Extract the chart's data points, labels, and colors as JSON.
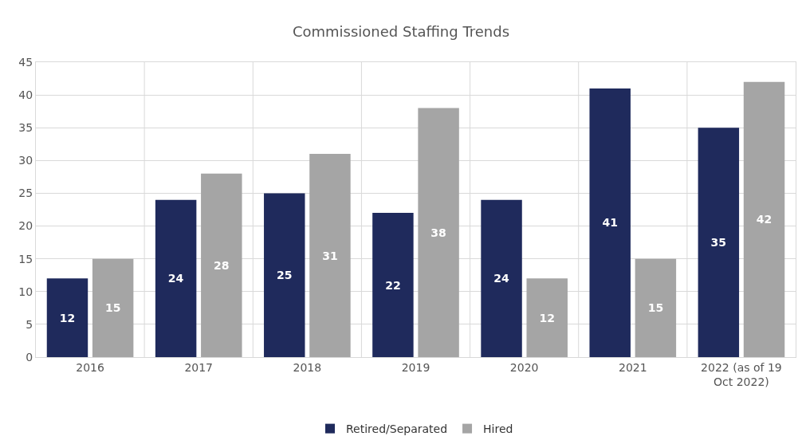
{
  "chart_data": {
    "type": "bar",
    "title": "Commissioned Staffing Trends",
    "categories": [
      "2016",
      "2017",
      "2018",
      "2019",
      "2020",
      "2021",
      "2022 (as of 19 Oct 2022)"
    ],
    "series": [
      {
        "name": "Retired/Separated",
        "color": "#1f2a5c",
        "values": [
          12,
          24,
          25,
          22,
          24,
          41,
          35
        ]
      },
      {
        "name": "Hired",
        "color": "#a5a5a5",
        "values": [
          15,
          28,
          31,
          38,
          12,
          15,
          42
        ]
      }
    ],
    "ylim": [
      0,
      45
    ],
    "yticks": [
      0,
      5,
      10,
      15,
      20,
      25,
      30,
      35,
      40,
      45
    ],
    "grid": true,
    "legend": "bottom",
    "data_labels": true
  }
}
